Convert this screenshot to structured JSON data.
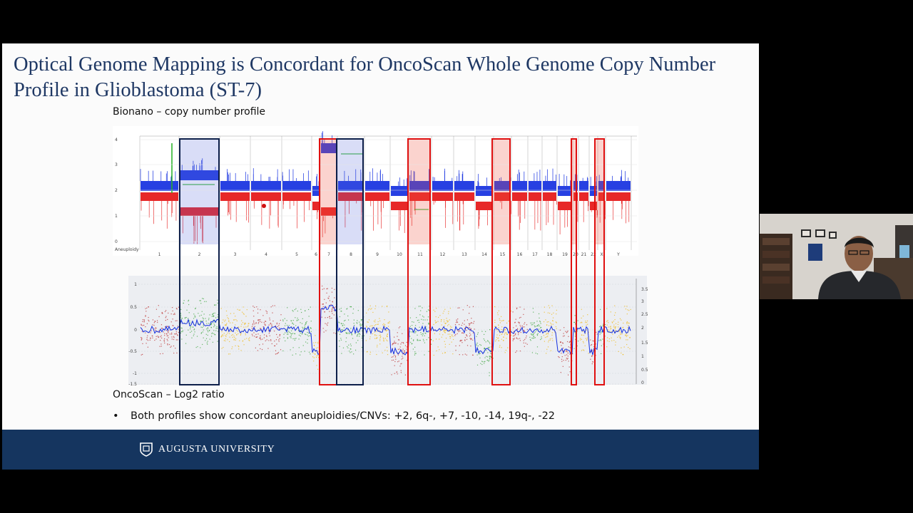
{
  "slide": {
    "title": "Optical Genome Mapping is Concordant for OncoScan Whole Genome Copy Number Profile in Glioblastoma (ST-7)",
    "caption_top": "Bionano – copy number profile",
    "caption_bottom": "OncoScan – Log2 ratio",
    "bullet": "Both profiles show concordant aneuploidies/CNVs: +2, 6q-, +7, -10, -14, 19q-, -22",
    "footer_logo_text": "AUGUSTA UNIVERSITY"
  },
  "bionano": {
    "y_axis_ticks": [
      "4",
      "3",
      "2",
      "1",
      "0"
    ],
    "aneuploidy_label": "Aneuploidy",
    "chromosomes": [
      "1",
      "2",
      "3",
      "4",
      "5",
      "6",
      "7",
      "8",
      "9",
      "10",
      "11",
      "12",
      "13",
      "14",
      "15",
      "16",
      "17",
      "18",
      "19",
      "20",
      "21",
      "22",
      "X",
      "Y"
    ]
  },
  "oncoscan": {
    "left_ticks": [
      "1",
      "0.5",
      "0",
      "-0.5",
      "-1",
      "-1.5"
    ],
    "right_ticks": [
      "3.5",
      "3",
      "2.5",
      "2",
      "1.5",
      "1",
      "0.5",
      "0"
    ]
  },
  "highlights": [
    {
      "label": "+2",
      "kind": "gain"
    },
    {
      "label": "6q-",
      "kind": "loss"
    },
    {
      "label": "+7",
      "kind": "gain"
    },
    {
      "label": "-10",
      "kind": "loss"
    },
    {
      "label": "-14",
      "kind": "loss"
    },
    {
      "label": "19q-",
      "kind": "loss"
    },
    {
      "label": "-22",
      "kind": "loss"
    }
  ],
  "colors": {
    "title": "#1f3864",
    "footer": "#15355f",
    "gain_box": "#0d1f4a",
    "loss_box": "#e01010",
    "cn_blue": "#1530e0",
    "cn_red": "#e51616",
    "cn_green": "#22b022"
  }
}
